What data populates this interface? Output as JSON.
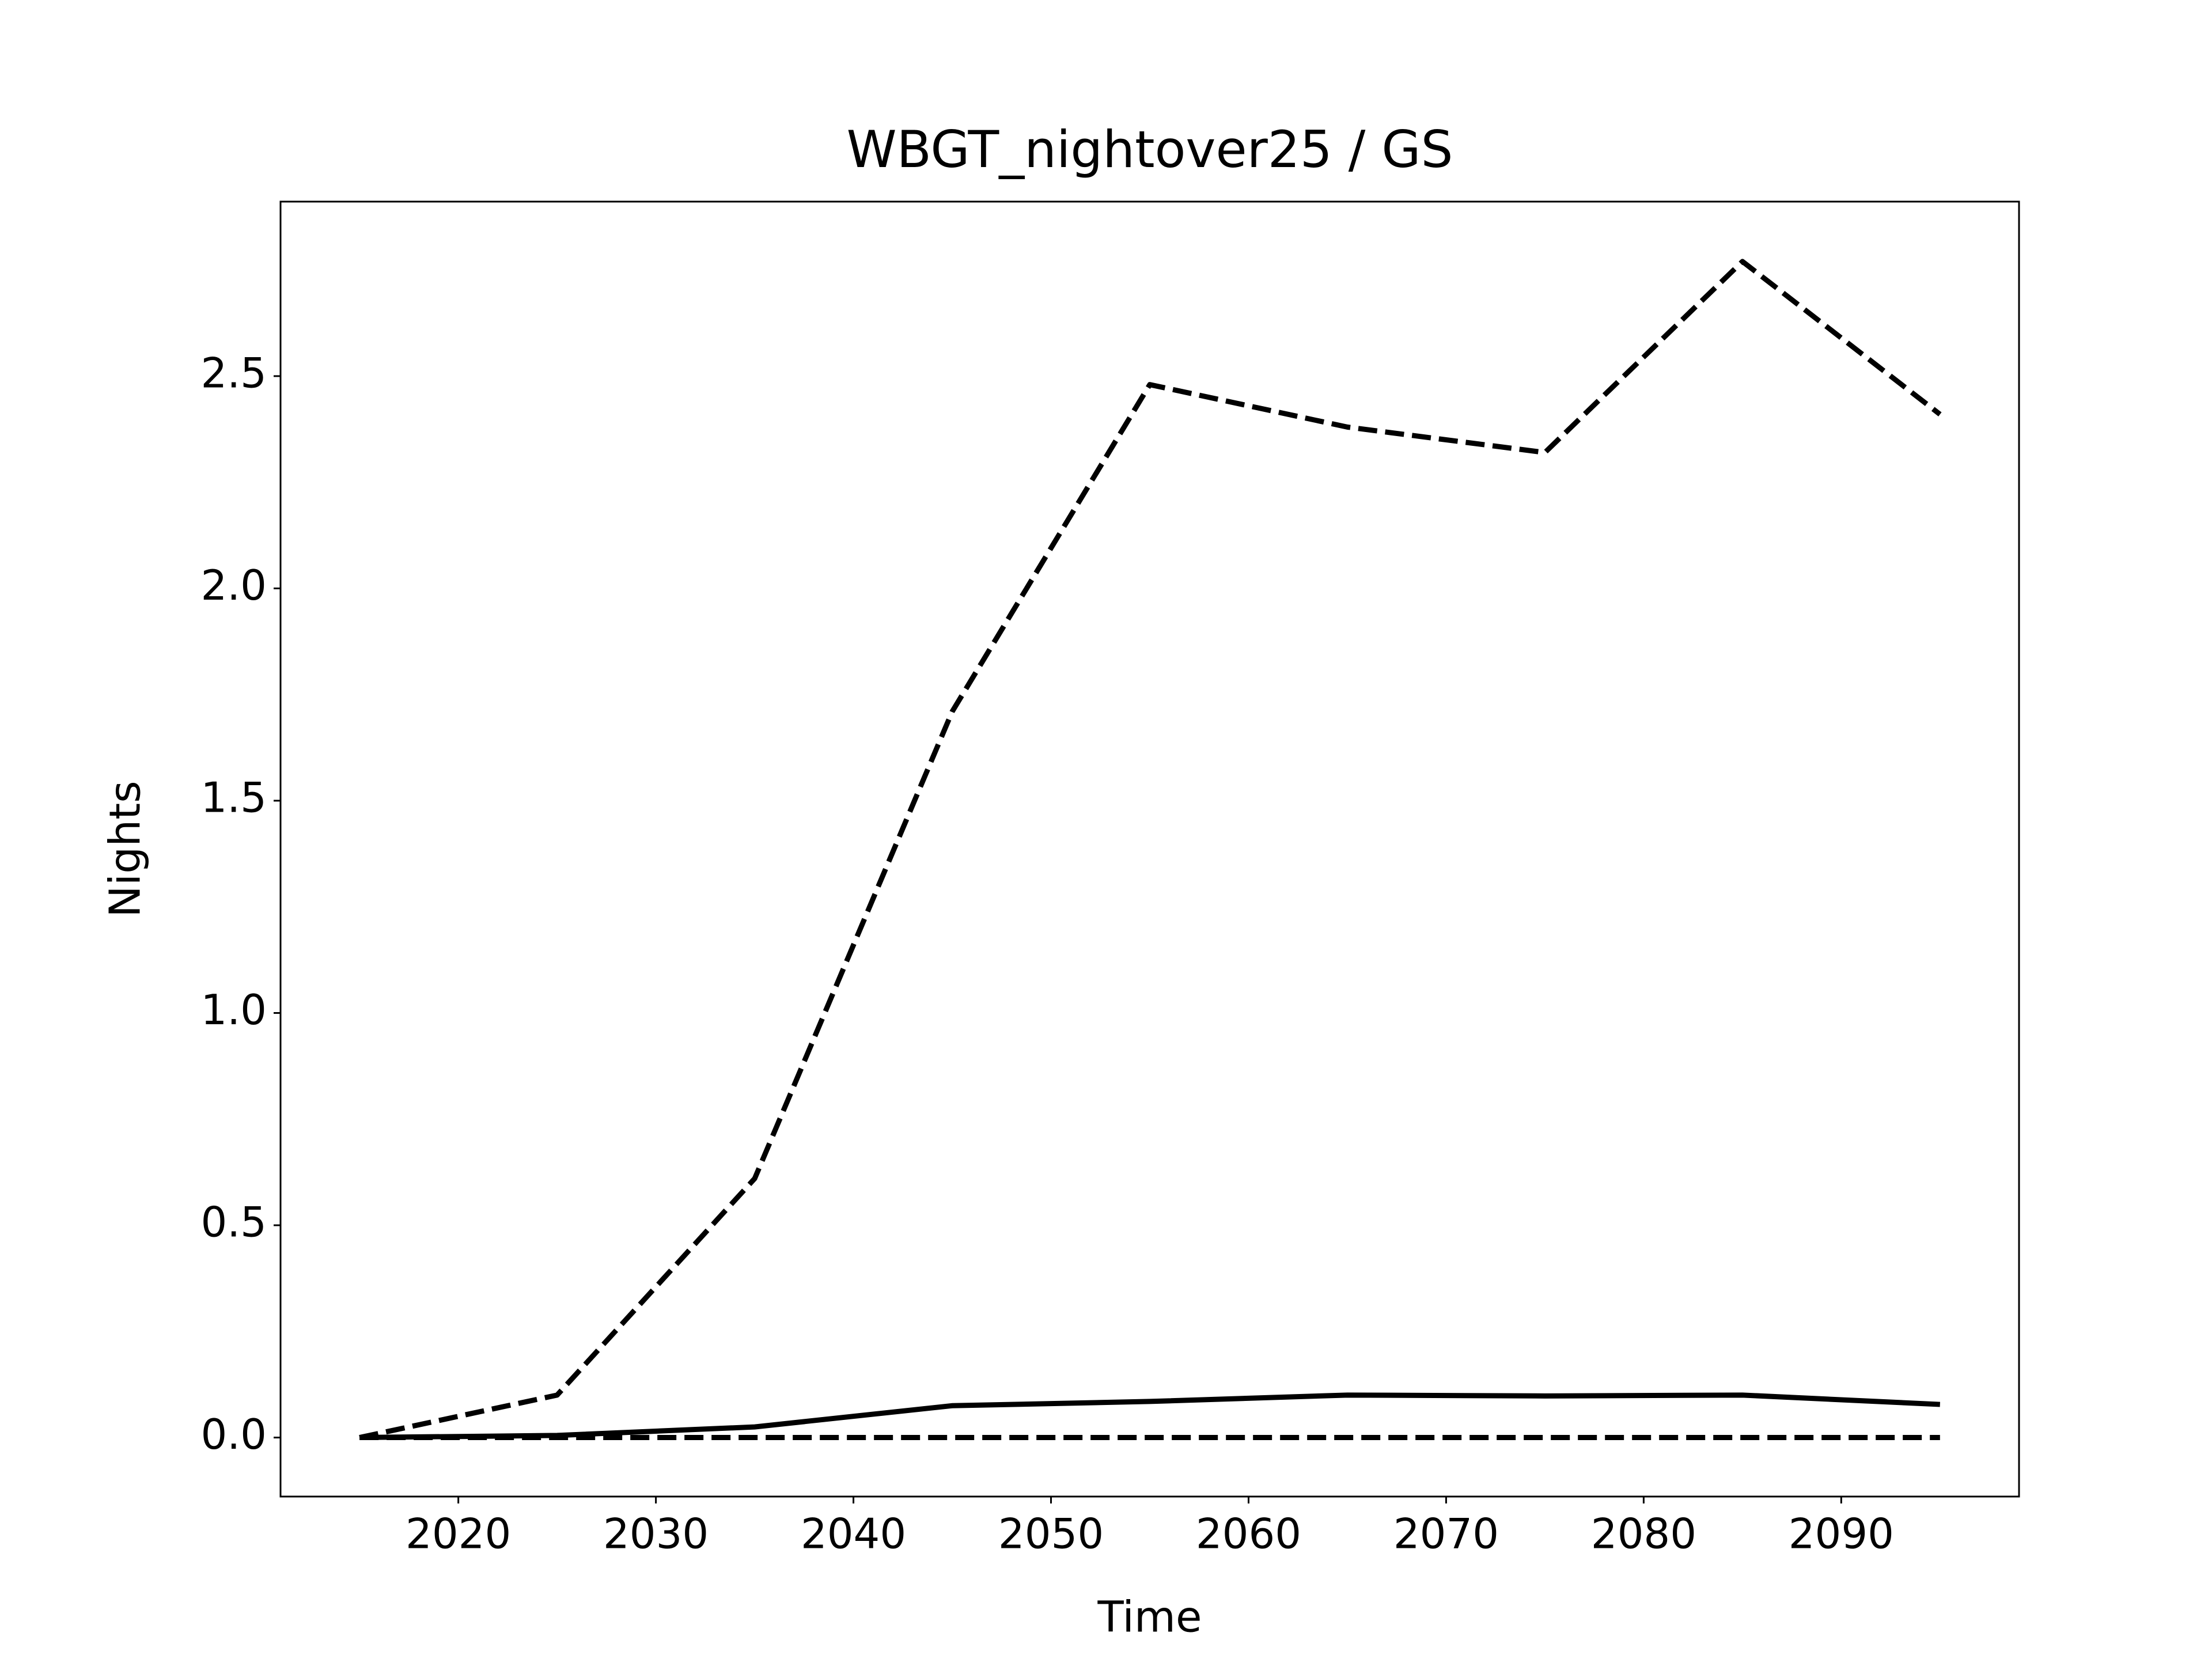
{
  "chart_data": {
    "type": "line",
    "title": "WBGT_nightover25 / GS",
    "x_label": "Time",
    "y_label": "Nights",
    "x": [
      2015,
      2025,
      2035,
      2045,
      2055,
      2065,
      2075,
      2085,
      2095
    ],
    "series": [
      {
        "color": "#000000",
        "dash": "dashed",
        "values": [
          0,
          0.1,
          0.61,
          1.71,
          2.48,
          2.38,
          2.32,
          2.77,
          2.41
        ]
      },
      {
        "color": "#000000",
        "dash": "solid",
        "values": [
          0,
          0.005,
          0.025,
          0.075,
          0.085,
          0.1,
          0.098,
          0.1,
          0.078
        ]
      },
      {
        "color": "#000000",
        "dash": "dashed",
        "values": [
          0,
          0,
          0,
          0,
          0,
          0,
          0,
          0,
          0
        ]
      }
    ],
    "xlim": [
      2011,
      2099
    ],
    "ylim": [
      -0.139,
      2.911
    ],
    "xticks": [
      2020,
      2030,
      2040,
      2050,
      2060,
      2070,
      2080,
      2090
    ],
    "yticks": [
      {
        "value": 0,
        "label": "0.0"
      },
      0.5,
      {
        "value": 1,
        "label": "1.0"
      },
      1.5,
      {
        "value": 2,
        "label": "2.0"
      },
      2.5
    ],
    "grid": false
  }
}
